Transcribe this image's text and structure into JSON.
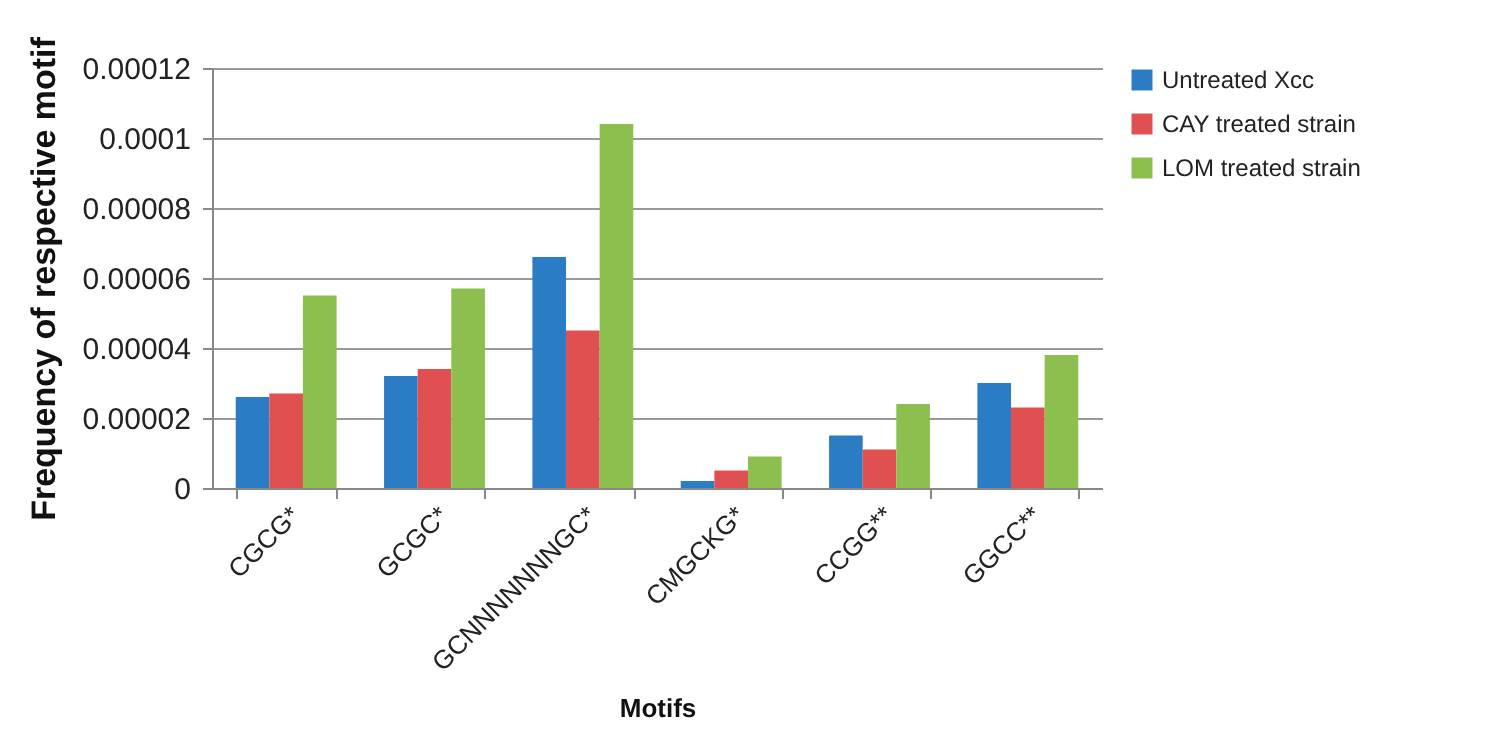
{
  "chart_data": {
    "type": "bar",
    "xlabel": "Motifs",
    "ylabel": "Frequency of respective motif",
    "categories": [
      "CGCG*",
      "GCGC*",
      "GCNNNNNNNGC*",
      "CMGCKG*",
      "CCGG**",
      "GGCC**"
    ],
    "series": [
      {
        "name": "Untreated Xcc",
        "color": "#2a7dc4",
        "values": [
          2.6e-05,
          3.2e-05,
          6.6e-05,
          2e-06,
          1.5e-05,
          3e-05
        ]
      },
      {
        "name": "CAY treated strain",
        "color": "#e05050",
        "values": [
          2.7e-05,
          3.4e-05,
          4.5e-05,
          5e-06,
          1.1e-05,
          2.3e-05
        ]
      },
      {
        "name": "LOM treated strain",
        "color": "#8dbf4f",
        "values": [
          5.5e-05,
          5.7e-05,
          0.000104,
          9e-06,
          2.4e-05,
          3.8e-05
        ]
      }
    ],
    "ylim": [
      0,
      0.00012
    ],
    "yticks": [
      0,
      {
        "value": 2e-05,
        "label": "0.00002"
      },
      {
        "value": 4e-05,
        "label": "0.00004"
      },
      {
        "value": 6e-05,
        "label": "0.00006"
      },
      {
        "value": 8e-05,
        "label": "0.00008"
      },
      {
        "value": 0.0001,
        "label": "0.0001"
      },
      {
        "value": 0.00012,
        "label": "0.00012"
      }
    ],
    "grid": "y",
    "legend": "top right"
  }
}
